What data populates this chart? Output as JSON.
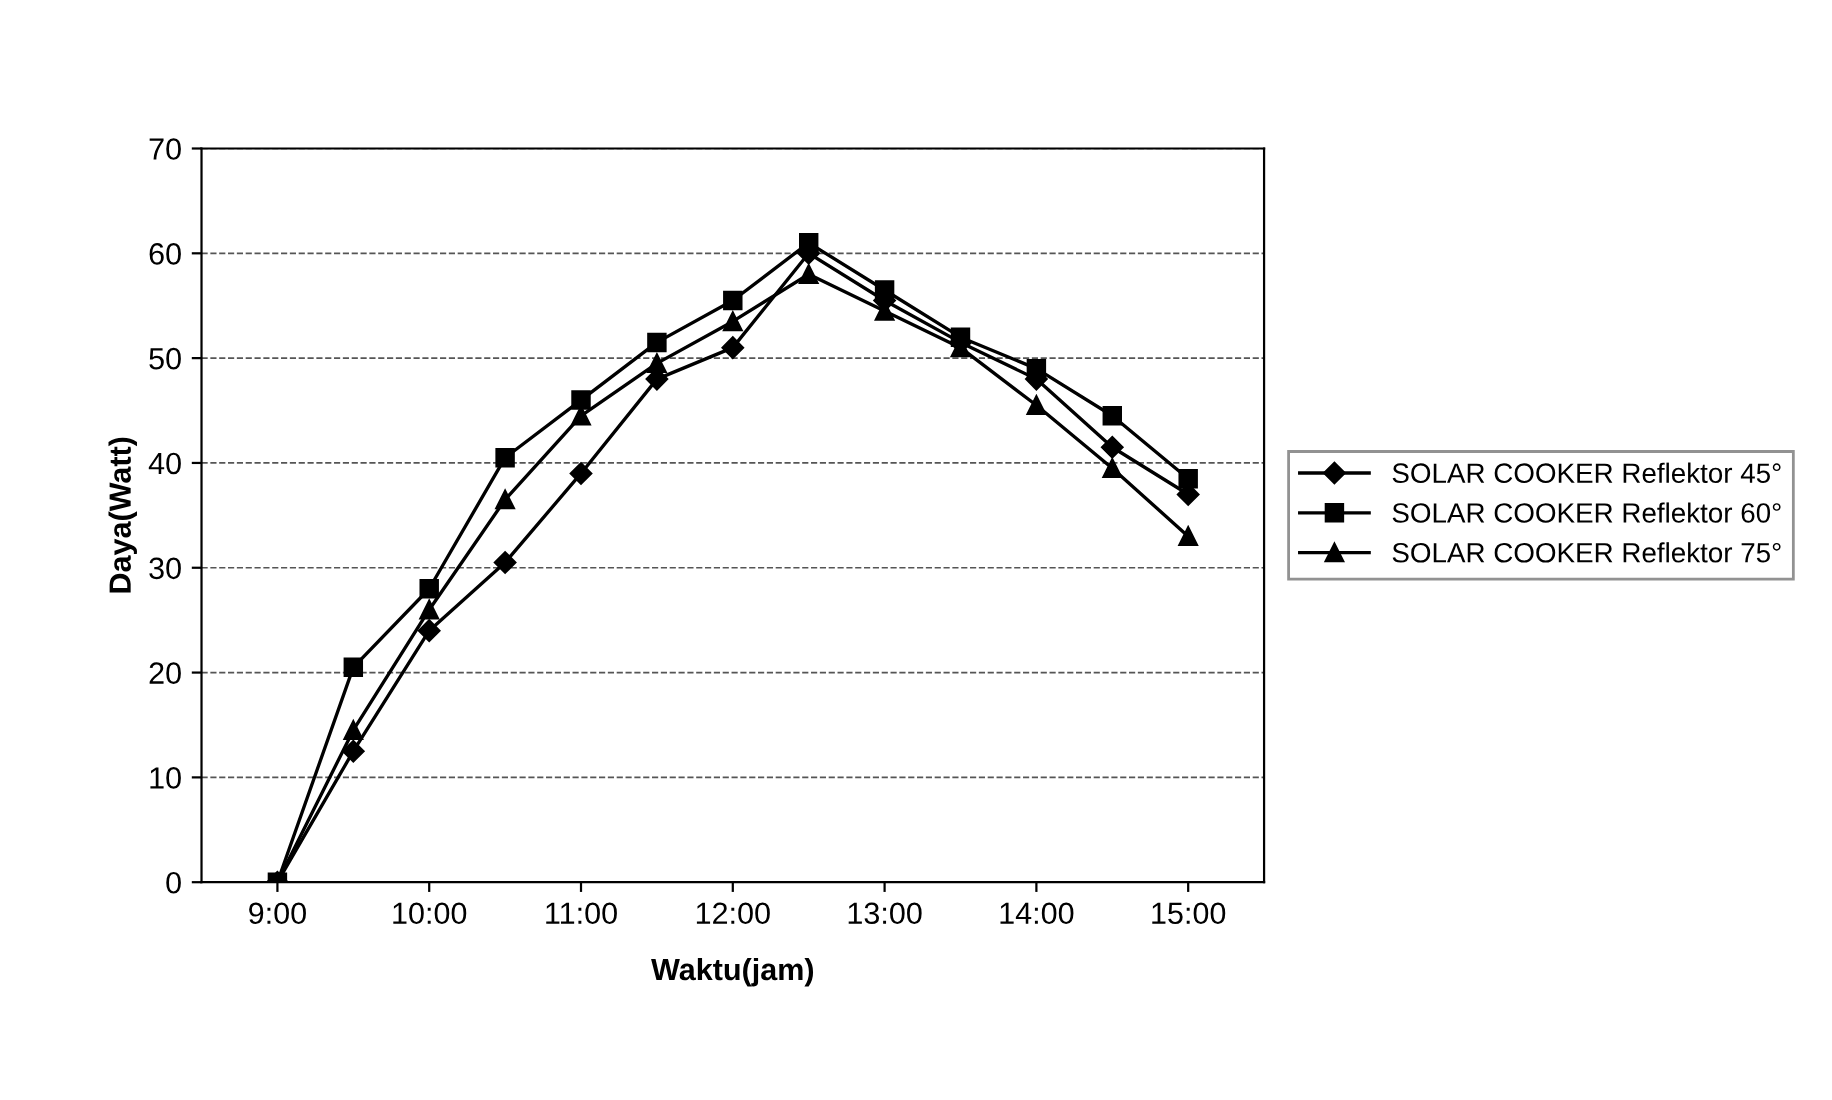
{
  "chart_data": {
    "type": "line",
    "xlabel": "Waktu(jam)",
    "ylabel": "Daya(Watt)",
    "x": [
      9,
      9.5,
      10,
      10.5,
      11,
      11.5,
      12,
      12.5,
      13,
      13.5,
      14,
      14.5,
      15
    ],
    "series": [
      {
        "name": "SOLAR COOKER Reflektor 45°",
        "color": "#000000",
        "marker": "diamond",
        "values": [
          0,
          12.5,
          24,
          30.5,
          39,
          48,
          51,
          60,
          55.5,
          51.5,
          48,
          41.5,
          37
        ]
      },
      {
        "name": "SOLAR COOKER Reflektor 60°",
        "color": "#000000",
        "marker": "square",
        "values": [
          0,
          20.5,
          28,
          40.5,
          46,
          51.5,
          55.5,
          61,
          56.5,
          52,
          49,
          44.5,
          38.5
        ]
      },
      {
        "name": "SOLAR COOKER Reflektor 75°",
        "color": "#000000",
        "marker": "triangle",
        "values": [
          0,
          14.5,
          26,
          36.5,
          44.5,
          49.5,
          53.5,
          58,
          54.5,
          51,
          45.5,
          39.5,
          33
        ]
      }
    ],
    "xlim": [
      8.5,
      15.5
    ],
    "xticks": [
      {
        "value": 9,
        "label": "9:00"
      },
      {
        "value": 10,
        "label": "10:00"
      },
      {
        "value": 11,
        "label": "11:00"
      },
      {
        "value": 12,
        "label": "12:00"
      },
      {
        "value": 13,
        "label": "13:00"
      },
      {
        "value": 14,
        "label": "14:00"
      },
      {
        "value": 15,
        "label": "15:00"
      }
    ],
    "ylim": [
      0,
      70
    ],
    "yticks": [
      0,
      10,
      20,
      30,
      40,
      50,
      60,
      70
    ],
    "grid": "y",
    "legend": "right",
    "line_style": "solid"
  }
}
